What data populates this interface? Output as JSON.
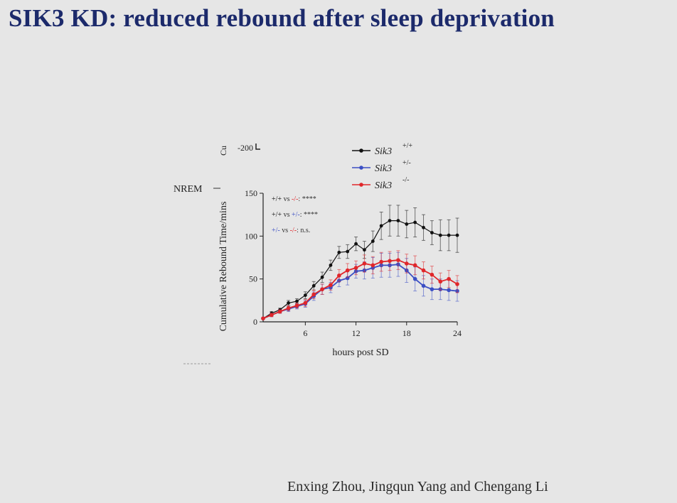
{
  "slide": {
    "title": "SIK3 KD: reduced rebound after sleep deprivation",
    "authors": "Enxing Zhou, Jingqun Yang and Chengang Li",
    "fragments": {
      "cu_label": "Cu",
      "top_tick": "-200",
      "nrem_label": "NREM"
    }
  },
  "colors": {
    "title": "#1c2a6b",
    "wt": "#111111",
    "het": "#3b4fc4",
    "ko": "#e0262a",
    "error_bar": "#888888"
  },
  "chart_data": {
    "type": "line",
    "xlabel": "hours post SD",
    "ylabel": "Cumulative Rebound Time/mins",
    "xlim": [
      1,
      24
    ],
    "ylim": [
      0,
      150
    ],
    "xticks": [
      6,
      12,
      18,
      24
    ],
    "yticks": [
      0,
      50,
      100,
      150
    ],
    "grid": false,
    "legend_position": "top-right",
    "x": [
      1,
      2,
      3,
      4,
      5,
      6,
      7,
      8,
      9,
      10,
      11,
      12,
      13,
      14,
      15,
      16,
      17,
      18,
      19,
      20,
      21,
      22,
      23,
      24
    ],
    "series": [
      {
        "name": "Sik3",
        "genotype": "+/+",
        "color": "#111111",
        "values": [
          4,
          10,
          14,
          22,
          24,
          31,
          42,
          52,
          66,
          81,
          82,
          91,
          84,
          94,
          112,
          118,
          118,
          114,
          116,
          110,
          104,
          101,
          101,
          101
        ],
        "errors": [
          1,
          2,
          2,
          3,
          3,
          4,
          5,
          6,
          6,
          7,
          8,
          8,
          10,
          12,
          16,
          18,
          18,
          16,
          17,
          15,
          14,
          18,
          18,
          20
        ]
      },
      {
        "name": "Sik3",
        "genotype": "+/-",
        "color": "#3b4fc4",
        "values": [
          4,
          8,
          12,
          15,
          18,
          21,
          30,
          38,
          40,
          48,
          51,
          59,
          60,
          63,
          66,
          66,
          67,
          60,
          50,
          42,
          38,
          38,
          37,
          36
        ],
        "errors": [
          1,
          2,
          2,
          3,
          3,
          4,
          5,
          6,
          6,
          7,
          8,
          8,
          10,
          12,
          14,
          14,
          14,
          14,
          14,
          12,
          12,
          12,
          12,
          12
        ]
      },
      {
        "name": "Sik3",
        "genotype": "-/-",
        "color": "#e0262a",
        "values": [
          4,
          8,
          12,
          16,
          19,
          22,
          32,
          38,
          43,
          54,
          60,
          63,
          68,
          66,
          70,
          71,
          72,
          68,
          66,
          60,
          55,
          47,
          50,
          44
        ],
        "errors": [
          1,
          2,
          2,
          3,
          3,
          4,
          5,
          6,
          6,
          7,
          8,
          8,
          10,
          10,
          11,
          11,
          11,
          11,
          11,
          10,
          10,
          10,
          10,
          10
        ]
      }
    ],
    "annotations": [
      {
        "a": "+/+",
        "vs": "vs",
        "b": "-/-",
        "sig": ": ****"
      },
      {
        "a": "+/+",
        "vs": "vs",
        "b": "+/-",
        "sig": ": ****"
      },
      {
        "a": "+/-",
        "vs": "vs",
        "b": "-/-",
        "sig": ": n.s."
      }
    ]
  }
}
